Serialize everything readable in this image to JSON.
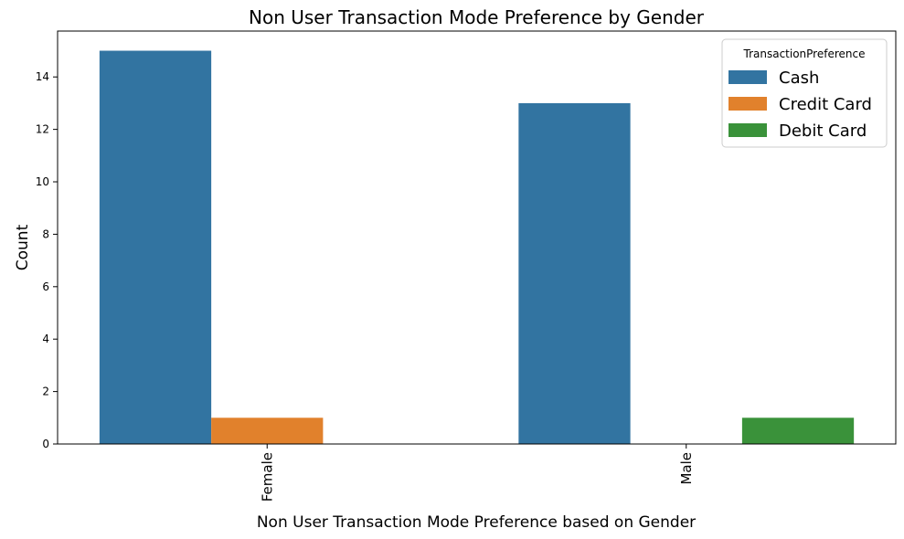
{
  "chart_data": {
    "type": "bar",
    "title": "Non User Transaction Mode Preference by Gender",
    "xlabel": "Non User Transaction Mode Preference based on Gender",
    "ylabel": "Count",
    "categories": [
      "Female",
      "Male"
    ],
    "series": [
      {
        "name": "Cash",
        "values": [
          15,
          13
        ],
        "color": "#3274a1"
      },
      {
        "name": "Credit Card",
        "values": [
          1,
          0
        ],
        "color": "#e1812c"
      },
      {
        "name": "Debit Card",
        "values": [
          0,
          1
        ],
        "color": "#3a923a"
      }
    ],
    "ylim": [
      0,
      15.75
    ],
    "yticks": [
      "0",
      "2",
      "4",
      "6",
      "8",
      "10",
      "12",
      "14"
    ],
    "grid": false,
    "legend": {
      "title": "TransactionPreference",
      "placement": "top-right"
    }
  }
}
